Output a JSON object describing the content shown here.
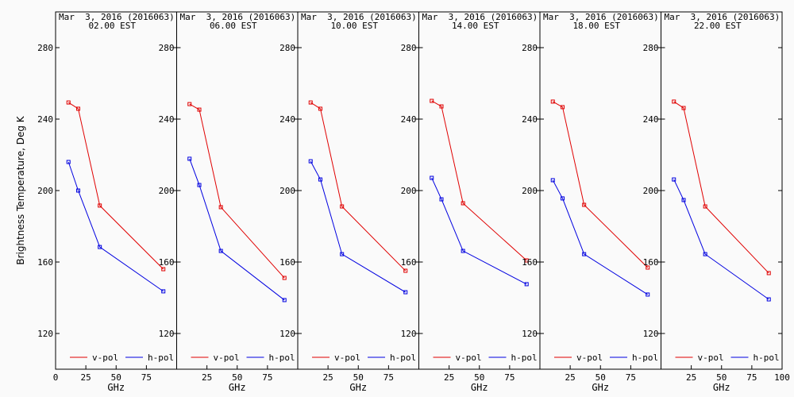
{
  "chart_data": [
    {
      "type": "line",
      "title": "Mar  3, 2016 (2016063)",
      "subtitle": "02.00 EST",
      "xlabel": "GHz",
      "ylabel": "Brightness Temperature, Deg K",
      "x": [
        10.65,
        18.7,
        36.5,
        89.0
      ],
      "series": [
        {
          "name": "v-pol",
          "color": "#e00000",
          "values": [
            249.3,
            245.8,
            191.6,
            156.0
          ]
        },
        {
          "name": "h-pol",
          "color": "#0000e0",
          "values": [
            216.0,
            200.0,
            168.4,
            143.6
          ]
        }
      ],
      "xlim": [
        0,
        100
      ],
      "xticks": [
        0,
        25,
        50,
        75
      ],
      "ylim": [
        100,
        300
      ],
      "yticks": [
        120,
        160,
        200,
        240,
        280
      ],
      "legend": "lower center"
    },
    {
      "type": "line",
      "title": "Mar  3, 2016 (2016063)",
      "subtitle": "06.00 EST",
      "xlabel": "GHz",
      "x": [
        10.65,
        18.7,
        36.5,
        89.0
      ],
      "series": [
        {
          "name": "v-pol",
          "color": "#e00000",
          "values": [
            248.4,
            245.3,
            190.7,
            151.1
          ]
        },
        {
          "name": "h-pol",
          "color": "#0000e0",
          "values": [
            217.8,
            203.1,
            166.2,
            138.7
          ]
        }
      ],
      "xlim": [
        0,
        100
      ],
      "xticks": [
        25,
        50,
        75
      ],
      "ylim": [
        100,
        300
      ],
      "yticks": [
        120,
        160,
        200,
        240,
        280
      ],
      "legend": "lower center"
    },
    {
      "type": "line",
      "title": "Mar  3, 2016 (2016063)",
      "subtitle": "10.00 EST",
      "xlabel": "GHz",
      "x": [
        10.65,
        18.7,
        36.5,
        89.0
      ],
      "series": [
        {
          "name": "v-pol",
          "color": "#e00000",
          "values": [
            249.3,
            245.8,
            191.1,
            155.1
          ]
        },
        {
          "name": "h-pol",
          "color": "#0000e0",
          "values": [
            216.4,
            206.2,
            164.4,
            143.1
          ]
        }
      ],
      "xlim": [
        0,
        100
      ],
      "xticks": [
        25,
        50,
        75
      ],
      "ylim": [
        100,
        300
      ],
      "yticks": [
        120,
        160,
        200,
        240,
        280
      ],
      "legend": "lower center"
    },
    {
      "type": "line",
      "title": "Mar  3, 2016 (2016063)",
      "subtitle": "14.00 EST",
      "xlabel": "GHz",
      "x": [
        10.65,
        18.7,
        36.5,
        89.0
      ],
      "series": [
        {
          "name": "v-pol",
          "color": "#e00000",
          "values": [
            250.2,
            247.1,
            192.9,
            160.9
          ]
        },
        {
          "name": "h-pol",
          "color": "#0000e0",
          "values": [
            207.1,
            195.1,
            166.2,
            147.6
          ]
        }
      ],
      "xlim": [
        0,
        100
      ],
      "xticks": [
        25,
        50,
        75
      ],
      "ylim": [
        100,
        300
      ],
      "yticks": [
        120,
        160,
        200,
        240,
        280
      ],
      "legend": "lower center"
    },
    {
      "type": "line",
      "title": "Mar  3, 2016 (2016063)",
      "subtitle": "18.00 EST",
      "xlabel": "GHz",
      "x": [
        10.65,
        18.7,
        36.5,
        89.0
      ],
      "series": [
        {
          "name": "v-pol",
          "color": "#e00000",
          "values": [
            249.8,
            246.7,
            192.0,
            156.9
          ]
        },
        {
          "name": "h-pol",
          "color": "#0000e0",
          "values": [
            205.8,
            195.6,
            164.4,
            141.8
          ]
        }
      ],
      "xlim": [
        0,
        100
      ],
      "xticks": [
        25,
        50,
        75
      ],
      "ylim": [
        100,
        300
      ],
      "yticks": [
        120,
        160,
        200,
        240,
        280
      ],
      "legend": "lower center"
    },
    {
      "type": "line",
      "title": "Mar  3, 2016 (2016063)",
      "subtitle": "22.00 EST",
      "xlabel": "GHz",
      "x": [
        10.65,
        18.7,
        36.5,
        89.0
      ],
      "series": [
        {
          "name": "v-pol",
          "color": "#e00000",
          "values": [
            249.8,
            246.2,
            191.1,
            153.8
          ]
        },
        {
          "name": "h-pol",
          "color": "#0000e0",
          "values": [
            206.2,
            194.7,
            164.4,
            139.1
          ]
        }
      ],
      "xlim": [
        0,
        100
      ],
      "xticks": [
        25,
        50,
        75,
        100
      ],
      "ylim": [
        100,
        300
      ],
      "yticks": [
        120,
        160,
        200,
        240,
        280
      ],
      "legend": "lower center"
    }
  ]
}
